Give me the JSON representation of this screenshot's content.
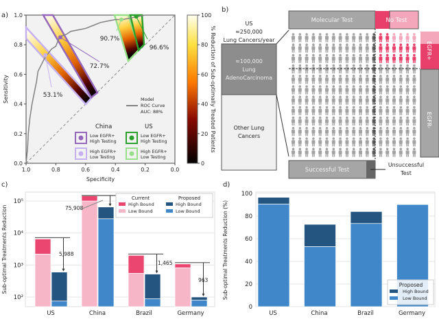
{
  "chart_data": [
    {
      "panel_label": "a)",
      "type": "line",
      "xlabel": "Specificity",
      "ylabel": "Sensitivity",
      "xlim": [
        1.0,
        0.0
      ],
      "ylim": [
        0.0,
        1.0
      ],
      "x_ticks": [
        "1.0",
        "0.8",
        "0.6",
        "0.4",
        "0.2",
        "0.0"
      ],
      "y_ticks": [
        "0.0",
        "0.2",
        "0.4",
        "0.6",
        "0.8",
        "1.0"
      ],
      "roc_curve": {
        "specificity": [
          1.0,
          0.99,
          0.985,
          0.975,
          0.96,
          0.95,
          0.93,
          0.92,
          0.9,
          0.88,
          0.86,
          0.83,
          0.8,
          0.78,
          0.76,
          0.73,
          0.7,
          0.65,
          0.6,
          0.55,
          0.5,
          0.45,
          0.4,
          0.35,
          0.3,
          0.25,
          0.2,
          0.1,
          0.0
        ],
        "sensitivity": [
          0.0,
          0.1,
          0.2,
          0.3,
          0.4,
          0.45,
          0.55,
          0.62,
          0.66,
          0.7,
          0.73,
          0.77,
          0.79,
          0.84,
          0.86,
          0.87,
          0.89,
          0.9,
          0.91,
          0.93,
          0.95,
          0.96,
          0.97,
          0.97,
          0.98,
          0.99,
          1.0,
          1.0,
          1.0
        ]
      },
      "legend_model": "Model\nROC Curve\nAUC: 88%",
      "legend_model_lines": [
        "Model",
        "ROC Curve",
        "AUC: 88%"
      ],
      "diagonal": "dashed",
      "scenarios": [
        {
          "group": "China",
          "label": "Low EGFR+ High Testing",
          "label_lines": [
            "Low EGFR+",
            "High Testing"
          ],
          "color": "#9467bd",
          "point": [
            0.77,
            0.85
          ],
          "annotation": "72.7%"
        },
        {
          "group": "China",
          "label": "High EGFR+ Low Testing",
          "label_lines": [
            "High EGFR+",
            "Low Testing"
          ],
          "color": "#c5b0f0",
          "point": [
            0.87,
            0.73
          ],
          "annotation": "53.1%"
        },
        {
          "group": "US",
          "label": "Low EGFR+ High Testing",
          "label_lines": [
            "Low EGFR+",
            "High Testing"
          ],
          "color": "#2ca02c",
          "point": [
            0.26,
            0.99
          ],
          "annotation": "96.6%"
        },
        {
          "group": "US",
          "label": "High EGFR+ Low Testing",
          "label_lines": [
            "High EGFR+",
            "Low Testing"
          ],
          "color": "#98df8a",
          "point": [
            0.36,
            0.97
          ],
          "annotation": "90.7%"
        }
      ],
      "legend_groups": [
        "China",
        "US"
      ],
      "colorbar": {
        "label": "% Reduction of Sub-optimally Treated Patients",
        "range": [
          0,
          100
        ],
        "ticks": [
          "0",
          "20",
          "40",
          "60",
          "80",
          "100"
        ],
        "colormap": "afmhot"
      },
      "grid": false,
      "background": "#f2f2f2"
    },
    {
      "panel_label": "c)",
      "type": "bar",
      "ylabel": "Sub-optimal Treatments Reduction",
      "yscale": "log",
      "ylim": [
        50,
        190000
      ],
      "y_ticks": [
        {
          "value": 100,
          "label": "10²"
        },
        {
          "value": 1000,
          "label": "10³"
        },
        {
          "value": 10000,
          "label": "10⁴"
        },
        {
          "value": 100000,
          "label": "10⁵"
        }
      ],
      "categories": [
        "US",
        "China",
        "Brazil",
        "Germany"
      ],
      "series": [
        {
          "name": "Current Low Bound",
          "group": "Current",
          "legend": "Low Bound",
          "color": "#f7b6c8",
          "values": [
            2200,
            100000,
            550,
            820
          ]
        },
        {
          "name": "Current High Bound",
          "group": "Current",
          "legend": "High Bound",
          "color": "#ea4670",
          "values": [
            6500,
            145000,
            2000,
            1080
          ]
        },
        {
          "name": "Proposed Low Bound",
          "group": "Proposed",
          "legend": "Low Bound",
          "color": "#3f87c8",
          "values": [
            75,
            28000,
            88,
            80
          ]
        },
        {
          "name": "Proposed High Bound",
          "group": "Proposed",
          "legend": "High Bound",
          "color": "#245580",
          "values": [
            600,
            65000,
            520,
            100
          ]
        }
      ],
      "reduction_annotations": [
        "5,988",
        "75,908",
        "1,465",
        "963"
      ],
      "legend_titles": [
        "Current",
        "Proposed"
      ],
      "legend_placement": "top-right",
      "grid": true
    },
    {
      "panel_label": "d)",
      "type": "bar",
      "ylabel": "Sub-optimal Treatments Reduction (%)",
      "ylim": [
        0,
        100
      ],
      "y_ticks": [
        "0",
        "20",
        "40",
        "60",
        "80",
        "100"
      ],
      "categories": [
        "US",
        "China",
        "Brazil",
        "Germany"
      ],
      "series": [
        {
          "name": "Low Bound",
          "color": "#3f87c8",
          "values": [
            90.7,
            53.1,
            73.5,
            90.2
          ]
        },
        {
          "name": "High Bound",
          "color": "#245580",
          "values": [
            96.6,
            72.7,
            84.0,
            90.2
          ]
        }
      ],
      "legend_title": "Proposed",
      "legend_placement": "lower-right",
      "grid": true
    }
  ],
  "panel_b": {
    "label": "b)",
    "us_title": [
      "US",
      "≈250,000",
      "Lung Cancers/year"
    ],
    "adeno_box": [
      "≈100,000",
      "Lung",
      "AdenoCarcinoma"
    ],
    "other_box": [
      "Other Lung",
      "Cancers"
    ],
    "molecular_test": "Molecular Test",
    "no_test": "No Test",
    "egfr_pos": "EGFR+",
    "egfr_neg": "EGFR-",
    "successful_test": "Successful Test",
    "unsuccessful_test": [
      "Unsuccessful",
      "Test"
    ],
    "colors": {
      "gray": "#a3a3a3",
      "dark": "#5a5a5a",
      "pink": "#e8406a",
      "light_pink": "#f4a6bb"
    }
  }
}
